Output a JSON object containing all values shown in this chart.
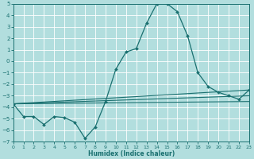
{
  "xlabel": "Humidex (Indice chaleur)",
  "xlim": [
    0,
    23
  ],
  "ylim": [
    -7,
    5
  ],
  "xticks": [
    0,
    1,
    2,
    3,
    4,
    5,
    6,
    7,
    8,
    9,
    10,
    11,
    12,
    13,
    14,
    15,
    16,
    17,
    18,
    19,
    20,
    21,
    22,
    23
  ],
  "yticks": [
    -7,
    -6,
    -5,
    -4,
    -3,
    -2,
    -1,
    0,
    1,
    2,
    3,
    4,
    5
  ],
  "bg_color": "#b2dede",
  "grid_color": "#ffffff",
  "line_color": "#1a7070",
  "main_x": [
    0,
    1,
    2,
    3,
    4,
    5,
    6,
    7,
    8,
    9,
    10,
    11,
    12,
    13,
    14,
    15,
    16,
    17,
    18,
    19,
    20,
    21,
    22,
    23
  ],
  "main_y": [
    -3.7,
    -4.8,
    -4.8,
    -5.5,
    -4.8,
    -4.9,
    -5.3,
    -6.7,
    -5.7,
    -3.5,
    -0.7,
    0.8,
    1.1,
    3.3,
    5.0,
    5.0,
    4.3,
    2.2,
    -1.0,
    -2.2,
    -2.7,
    -3.0,
    -3.3,
    -2.5
  ],
  "flat_lines": [
    {
      "x0": 0,
      "y0": -3.7,
      "x1": 23,
      "y1": -2.5
    },
    {
      "x0": 0,
      "y0": -3.7,
      "x1": 23,
      "y1": -3.0
    },
    {
      "x0": 0,
      "y0": -3.7,
      "x1": 23,
      "y1": -3.5
    }
  ],
  "marker": "D",
  "markersize": 2.0,
  "linewidth": 0.9,
  "flat_linewidth": 0.8,
  "xlabel_fontsize": 5.5,
  "tick_fontsize_x": 4.5,
  "tick_fontsize_y": 5.0
}
